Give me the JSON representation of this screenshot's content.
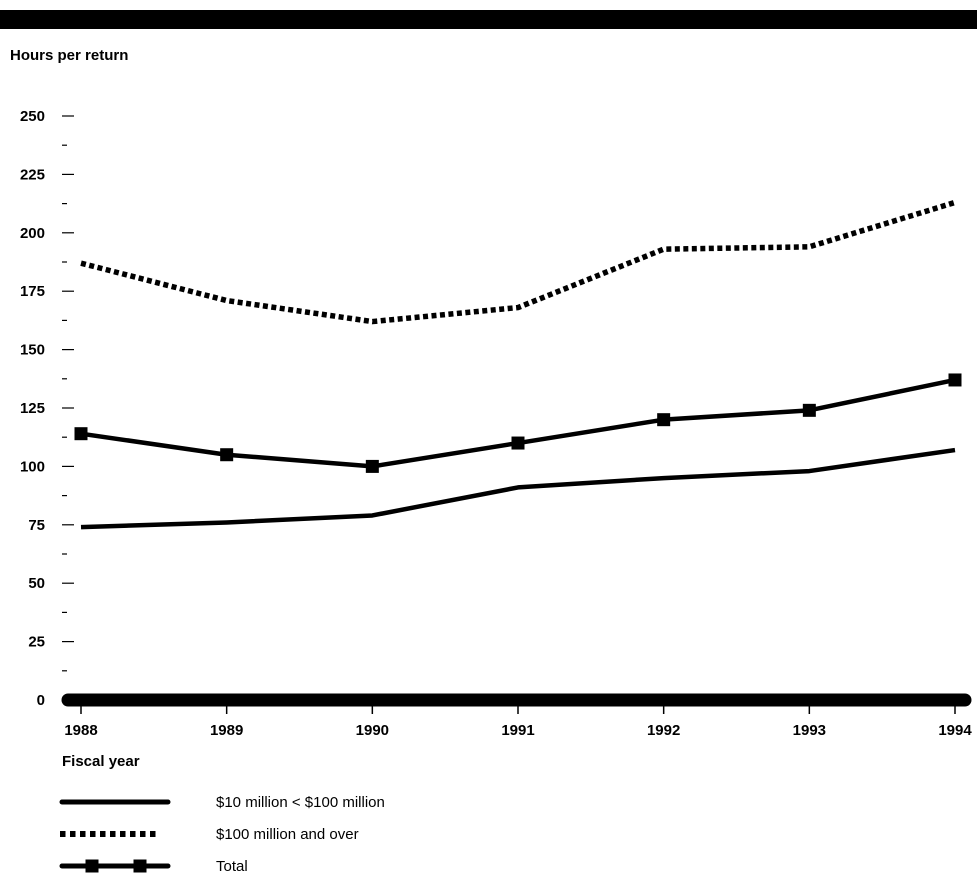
{
  "chart_data": {
    "type": "line",
    "ylabel": "Hours per return",
    "xlabel": "Fiscal year",
    "x": [
      1988,
      1989,
      1990,
      1991,
      1992,
      1993,
      1994
    ],
    "y_ticks_labeled": [
      0,
      25,
      50,
      75,
      100,
      125,
      150,
      175,
      200,
      225,
      250
    ],
    "ylim": [
      0,
      250
    ],
    "grid": false,
    "legend_position": "bottom-left",
    "series": [
      {
        "name": "$10 million < $100 million",
        "style": "solid",
        "color": "#000000",
        "values": [
          74,
          76,
          79,
          91,
          95,
          98,
          107
        ]
      },
      {
        "name": "$100 million and over",
        "style": "dotted",
        "color": "#000000",
        "values": [
          187,
          171,
          162,
          168,
          193,
          194,
          213
        ]
      },
      {
        "name": "Total",
        "style": "solid-square-markers",
        "color": "#000000",
        "values": [
          114,
          105,
          100,
          110,
          120,
          124,
          137
        ]
      }
    ]
  }
}
